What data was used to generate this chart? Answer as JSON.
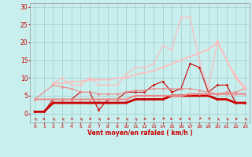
{
  "xlabel": "Vent moyen/en rafales ( km/h )",
  "xlim": [
    -0.5,
    23.5
  ],
  "ylim": [
    -2.5,
    31
  ],
  "yticks": [
    0,
    5,
    10,
    15,
    20,
    25,
    30
  ],
  "xticks": [
    0,
    1,
    2,
    3,
    4,
    5,
    6,
    7,
    8,
    9,
    10,
    11,
    12,
    13,
    14,
    15,
    16,
    17,
    18,
    19,
    20,
    21,
    22,
    23
  ],
  "bg_color": "#c8eeed",
  "grid_color": "#a0cccc",
  "series": [
    {
      "x": [
        0,
        1,
        2,
        3,
        4,
        5,
        6,
        7,
        8,
        9,
        10,
        11,
        12,
        13,
        14,
        15,
        16,
        17,
        18,
        19,
        20,
        21,
        22,
        23
      ],
      "y": [
        0.5,
        0.5,
        4,
        4,
        4,
        6,
        6,
        1,
        4,
        4,
        6,
        6,
        6,
        8,
        9,
        6,
        7,
        14,
        13,
        6,
        8,
        8,
        3,
        3
      ],
      "color": "#cc0000",
      "lw": 0.8,
      "marker": "D",
      "ms": 1.5
    },
    {
      "x": [
        0,
        1,
        2,
        3,
        4,
        5,
        6,
        7,
        8,
        9,
        10,
        11,
        12,
        13,
        14,
        15,
        16,
        17,
        18,
        19,
        20,
        21,
        22,
        23
      ],
      "y": [
        0.5,
        0.5,
        3,
        3,
        3,
        3,
        3,
        3,
        3,
        3,
        3,
        4,
        4,
        4,
        4,
        5,
        5,
        5,
        5,
        5,
        4,
        4,
        3,
        3
      ],
      "color": "#cc0000",
      "lw": 2.0,
      "marker": "s",
      "ms": 1.5
    },
    {
      "x": [
        0,
        2,
        3,
        4,
        5,
        6,
        7,
        8,
        9,
        10,
        11,
        12,
        13,
        14,
        15,
        16,
        17,
        18,
        19,
        20,
        21,
        22,
        23
      ],
      "y": [
        4,
        8,
        7.5,
        7,
        6,
        6,
        5.5,
        5.5,
        5.5,
        6,
        6.5,
        6.5,
        7,
        7,
        7,
        7,
        7,
        6.5,
        6,
        5.5,
        6,
        6,
        7
      ],
      "color": "#ee8888",
      "lw": 0.8,
      "marker": "D",
      "ms": 1.5
    },
    {
      "x": [
        0,
        2,
        3,
        4,
        5,
        6,
        7,
        8,
        9,
        10,
        11,
        12,
        13,
        14,
        15,
        16,
        17,
        18,
        19,
        20,
        21,
        22,
        23
      ],
      "y": [
        4,
        4,
        4,
        4,
        4,
        4,
        4,
        4,
        4,
        4,
        5,
        5,
        5,
        5,
        5,
        5,
        5.5,
        5.5,
        5.5,
        5.5,
        5.5,
        5.5,
        5.5
      ],
      "color": "#ee8888",
      "lw": 1.5,
      "marker": "s",
      "ms": 1.2
    },
    {
      "x": [
        2,
        3,
        4,
        5,
        6,
        7,
        8,
        9,
        10,
        11,
        12,
        13,
        14,
        15,
        16,
        17,
        18,
        19,
        20,
        21,
        22,
        23
      ],
      "y": [
        8.5,
        10,
        8,
        8,
        10,
        8,
        8,
        8,
        11,
        13,
        13,
        14,
        19,
        18,
        27,
        27,
        15,
        7,
        20.5,
        15,
        10.5,
        7.5
      ],
      "color": "#ffbbbb",
      "lw": 0.8,
      "marker": "D",
      "ms": 1.5
    },
    {
      "x": [
        2,
        3,
        4,
        5,
        6,
        7,
        8,
        9,
        10,
        11,
        12,
        13,
        14,
        15,
        16,
        17,
        18,
        19,
        20,
        21,
        22,
        23
      ],
      "y": [
        8.5,
        8.5,
        9,
        9,
        9.5,
        9.5,
        9.5,
        10,
        10,
        11,
        11.5,
        12,
        13,
        14,
        15,
        16,
        17,
        18,
        20,
        15,
        10,
        7
      ],
      "color": "#ffbbbb",
      "lw": 1.2,
      "marker": "s",
      "ms": 1.0
    }
  ],
  "wind_arrows": {
    "x": [
      0,
      1,
      2,
      3,
      4,
      5,
      6,
      7,
      8,
      9,
      10,
      11,
      12,
      13,
      14,
      15,
      16,
      17,
      18,
      19,
      20,
      21,
      22,
      23
    ],
    "angles": [
      225,
      180,
      225,
      225,
      270,
      225,
      270,
      225,
      270,
      315,
      225,
      225,
      270,
      270,
      315,
      90,
      90,
      90,
      315,
      315,
      225,
      225,
      270,
      225
    ]
  }
}
